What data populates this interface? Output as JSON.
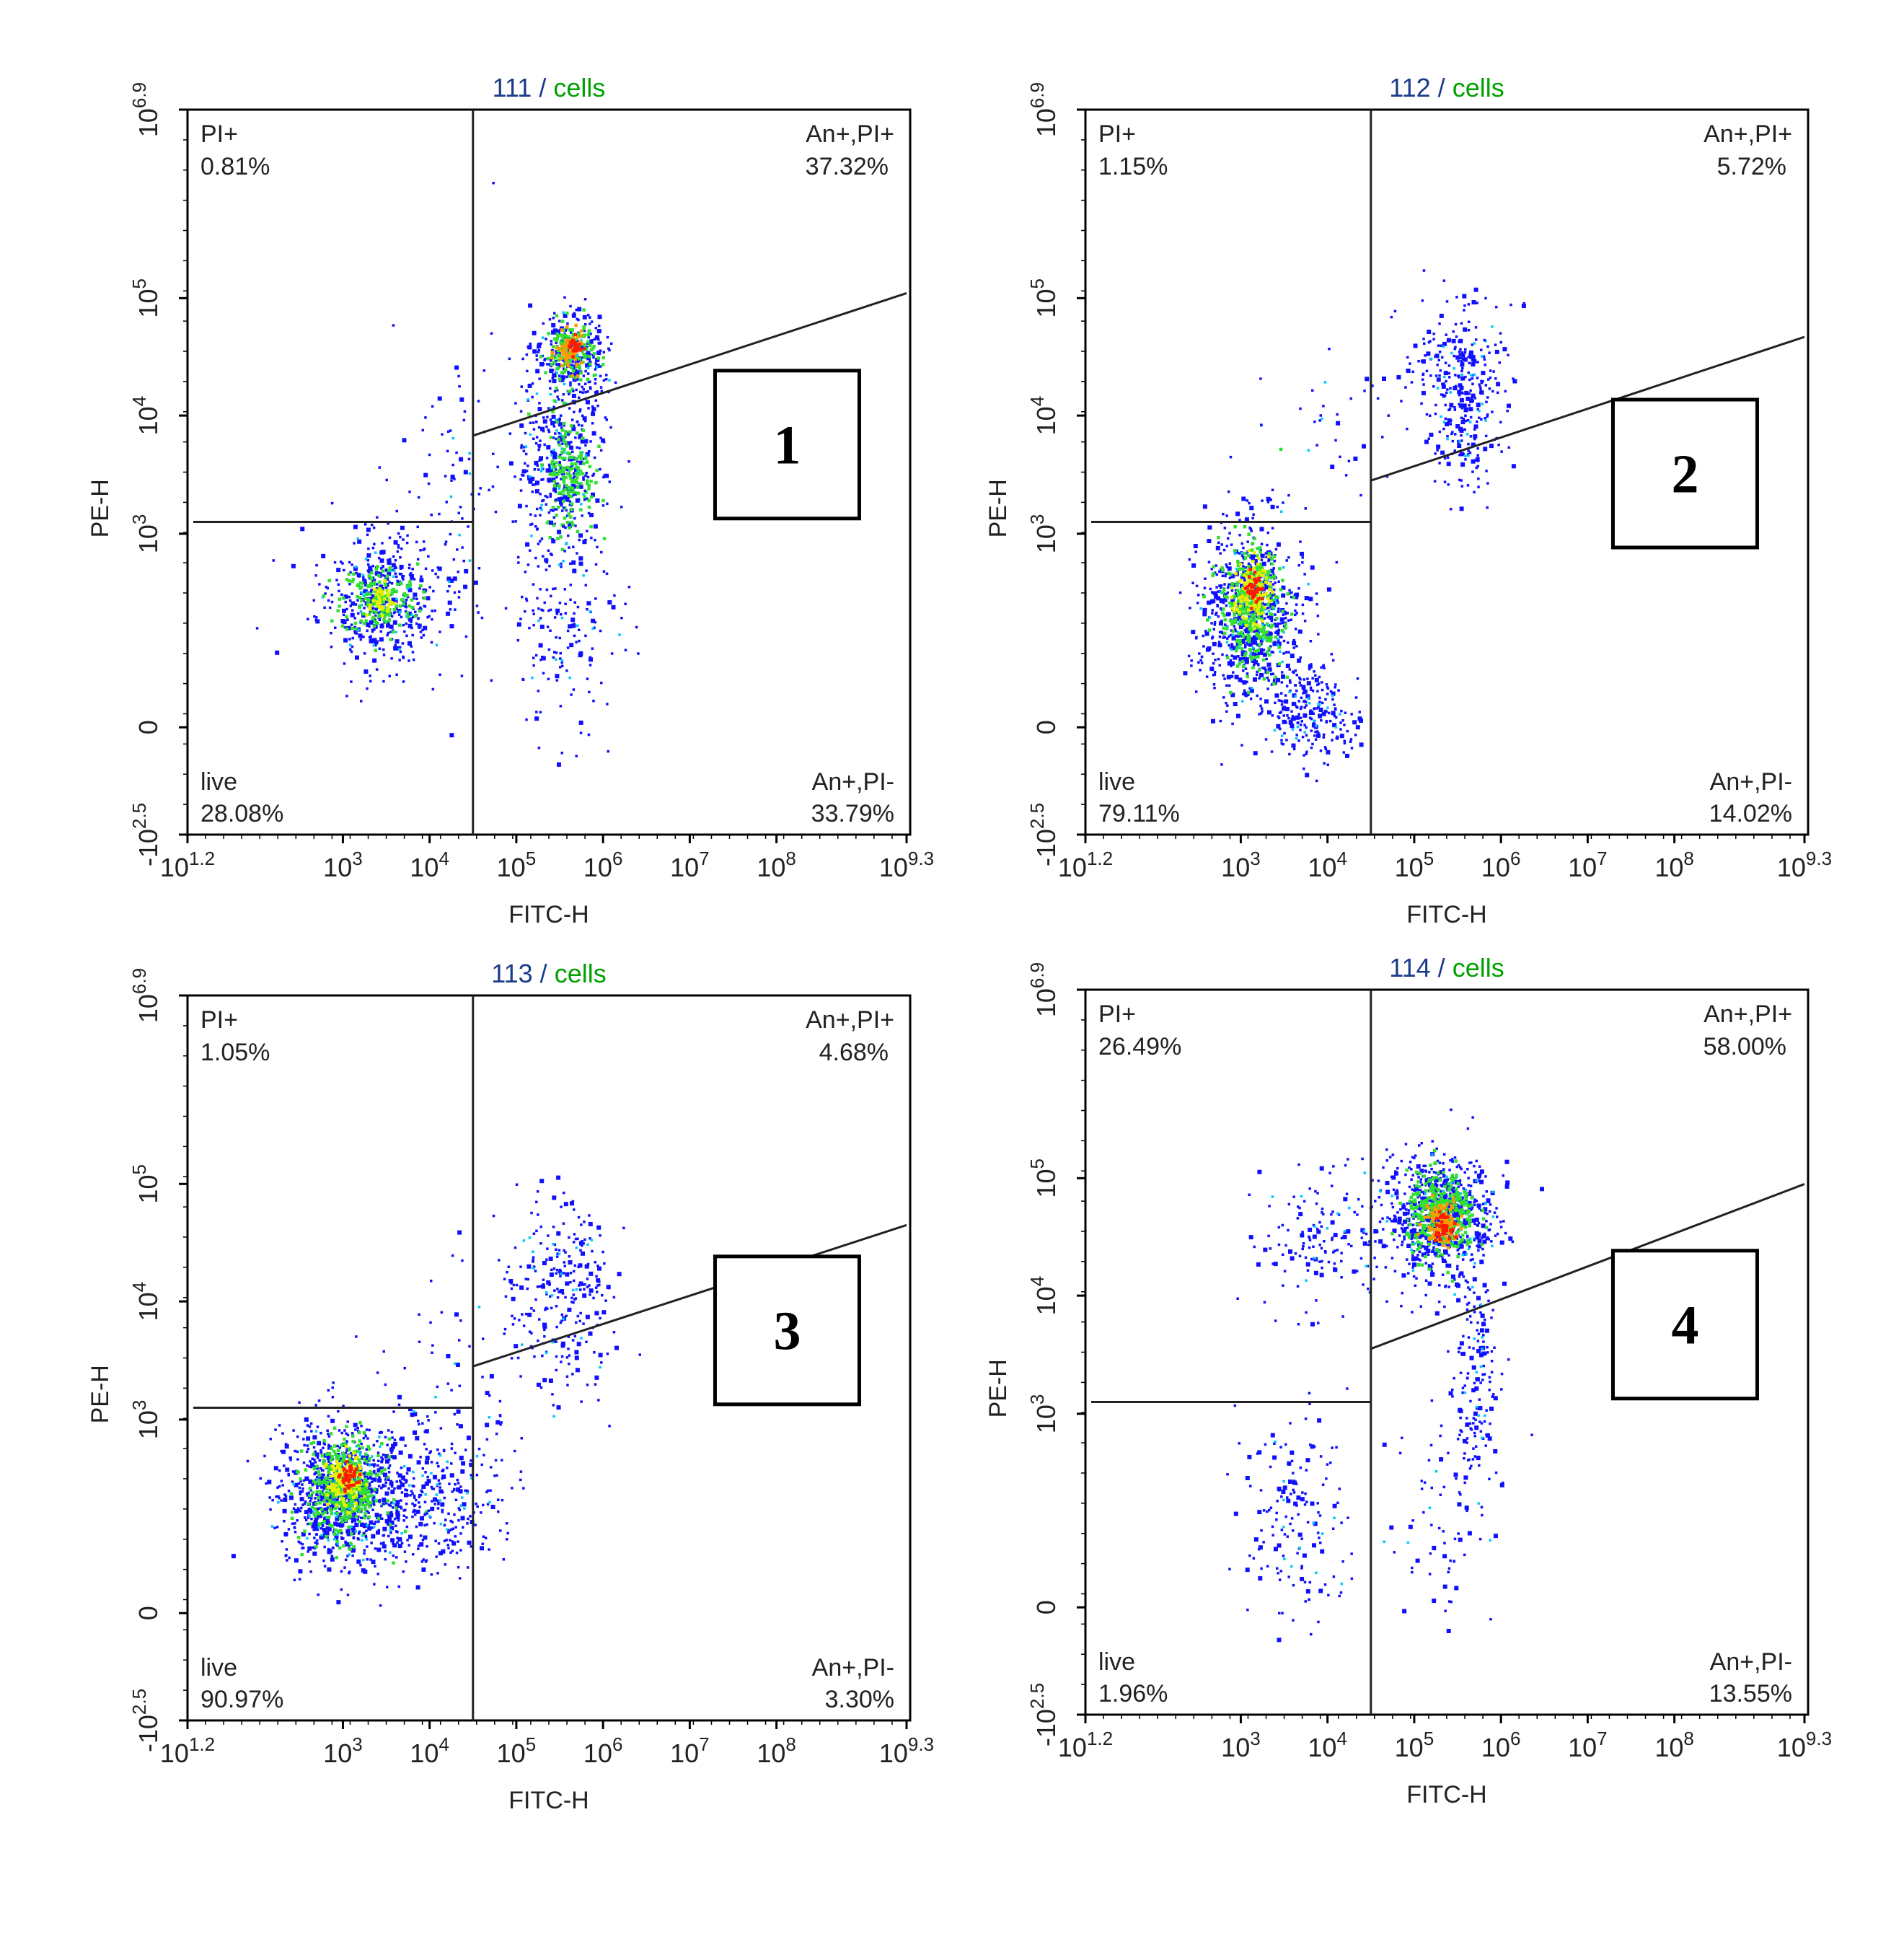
{
  "chart_data": [
    {
      "type": "scatter",
      "sample": "111",
      "gate": "cells",
      "xlabel": "FITC-H",
      "ylabel": "PE-H",
      "panel_number": "1",
      "x_ticks": [
        {
          "base": "10",
          "exp": "1.2"
        },
        {
          "base": "10",
          "exp": "3"
        },
        {
          "base": "10",
          "exp": "4"
        },
        {
          "base": "10",
          "exp": "5"
        },
        {
          "base": "10",
          "exp": "6"
        },
        {
          "base": "10",
          "exp": "7"
        },
        {
          "base": "10",
          "exp": "8"
        },
        {
          "base": "10",
          "exp": "9.3"
        }
      ],
      "y_ticks": [
        {
          "base": "-10",
          "exp": "2.5"
        },
        {
          "base": "0",
          "exp": ""
        },
        {
          "base": "10",
          "exp": "3"
        },
        {
          "base": "10",
          "exp": "4"
        },
        {
          "base": "10",
          "exp": "5"
        },
        {
          "base": "10",
          "exp": "6.9"
        }
      ],
      "quadrants": {
        "top_left": {
          "label": "PI+",
          "value": "0.81%"
        },
        "top_right": {
          "label": "An+,PI+",
          "value": "37.32%"
        },
        "bottom_left": {
          "label": "live",
          "value": "28.08%"
        },
        "bottom_right": {
          "label": "An+,PI-",
          "value": "33.79%"
        }
      },
      "gate_x_log": 4.5,
      "gate_y_left_log": 3.1,
      "diag_line": {
        "x_log": [
          4.5,
          9.3
        ],
        "y_log": [
          3.83,
          5.05
        ]
      },
      "clusters": [
        {
          "cx": 3.4,
          "cy": 2.2,
          "sx": 0.35,
          "sy": 0.42,
          "n": 420,
          "color": "blue"
        },
        {
          "cx": 3.4,
          "cy": 2.2,
          "sx": 0.22,
          "sy": 0.22,
          "n": 160,
          "color": "green"
        },
        {
          "cx": 3.4,
          "cy": 2.2,
          "sx": 0.1,
          "sy": 0.1,
          "n": 40,
          "color": "yellow"
        },
        {
          "cx": 5.6,
          "cy": 4.5,
          "sx": 0.22,
          "sy": 0.22,
          "n": 260,
          "color": "blue"
        },
        {
          "cx": 5.6,
          "cy": 4.55,
          "sx": 0.14,
          "sy": 0.14,
          "n": 140,
          "color": "green"
        },
        {
          "cx": 5.6,
          "cy": 4.55,
          "sx": 0.08,
          "sy": 0.08,
          "n": 70,
          "color": "orange"
        },
        {
          "cx": 5.65,
          "cy": 4.6,
          "sx": 0.04,
          "sy": 0.04,
          "n": 25,
          "color": "red"
        },
        {
          "cx": 5.5,
          "cy": 3.6,
          "sx": 0.25,
          "sy": 0.35,
          "n": 320,
          "color": "blue"
        },
        {
          "cx": 5.6,
          "cy": 3.5,
          "sx": 0.14,
          "sy": 0.25,
          "n": 150,
          "color": "green"
        },
        {
          "cx": 5.5,
          "cy": 2.0,
          "sx": 0.3,
          "sy": 0.7,
          "n": 180,
          "color": "blue"
        },
        {
          "cx": 4.3,
          "cy": 3.2,
          "sx": 0.35,
          "sy": 0.9,
          "n": 90,
          "color": "blue"
        }
      ]
    },
    {
      "type": "scatter",
      "sample": "112",
      "gate": "cells",
      "xlabel": "FITC-H",
      "ylabel": "PE-H",
      "panel_number": "2",
      "x_ticks": [
        {
          "base": "10",
          "exp": "1.2"
        },
        {
          "base": "10",
          "exp": "3"
        },
        {
          "base": "10",
          "exp": "4"
        },
        {
          "base": "10",
          "exp": "5"
        },
        {
          "base": "10",
          "exp": "6"
        },
        {
          "base": "10",
          "exp": "7"
        },
        {
          "base": "10",
          "exp": "8"
        },
        {
          "base": "10",
          "exp": "9.3"
        }
      ],
      "y_ticks": [
        {
          "base": "-10",
          "exp": "2.5"
        },
        {
          "base": "0",
          "exp": ""
        },
        {
          "base": "10",
          "exp": "3"
        },
        {
          "base": "10",
          "exp": "4"
        },
        {
          "base": "10",
          "exp": "5"
        },
        {
          "base": "10",
          "exp": "6.9"
        }
      ],
      "quadrants": {
        "top_left": {
          "label": "PI+",
          "value": "1.15%"
        },
        "top_right": {
          "label": "An+,PI+",
          "value": "5.72%"
        },
        "bottom_left": {
          "label": "live",
          "value": "79.11%"
        },
        "bottom_right": {
          "label": "An+,PI-",
          "value": "14.02%"
        }
      },
      "gate_x_log": 4.5,
      "gate_y_left_log": 3.1,
      "diag_line": {
        "x_log": [
          4.5,
          9.3
        ],
        "y_log": [
          3.45,
          4.67
        ]
      },
      "clusters": [
        {
          "cx": 3.1,
          "cy": 2.0,
          "sx": 0.3,
          "sy": 0.55,
          "n": 700,
          "color": "blue"
        },
        {
          "cx": 3.1,
          "cy": 2.1,
          "sx": 0.18,
          "sy": 0.38,
          "n": 320,
          "color": "green"
        },
        {
          "cx": 3.1,
          "cy": 2.3,
          "sx": 0.1,
          "sy": 0.2,
          "n": 110,
          "color": "yellow"
        },
        {
          "cx": 3.15,
          "cy": 2.35,
          "sx": 0.05,
          "sy": 0.1,
          "n": 40,
          "color": "red"
        },
        {
          "cx": 3.8,
          "cy": 0.8,
          "sx": 0.3,
          "sy": 0.3,
          "n": 220,
          "color": "blue"
        },
        {
          "cx": 5.5,
          "cy": 4.35,
          "sx": 0.3,
          "sy": 0.3,
          "n": 230,
          "color": "blue"
        },
        {
          "cx": 5.6,
          "cy": 3.8,
          "sx": 0.2,
          "sy": 0.3,
          "n": 90,
          "color": "blue"
        },
        {
          "cx": 4.2,
          "cy": 3.9,
          "sx": 0.6,
          "sy": 0.4,
          "n": 40,
          "color": "blue"
        }
      ]
    },
    {
      "type": "scatter",
      "sample": "113",
      "gate": "cells",
      "xlabel": "FITC-H",
      "ylabel": "PE-H",
      "panel_number": "3",
      "x_ticks": [
        {
          "base": "10",
          "exp": "1.2"
        },
        {
          "base": "10",
          "exp": "3"
        },
        {
          "base": "10",
          "exp": "4"
        },
        {
          "base": "10",
          "exp": "5"
        },
        {
          "base": "10",
          "exp": "6"
        },
        {
          "base": "10",
          "exp": "7"
        },
        {
          "base": "10",
          "exp": "8"
        },
        {
          "base": "10",
          "exp": "9.3"
        }
      ],
      "y_ticks": [
        {
          "base": "-10",
          "exp": "2.5"
        },
        {
          "base": "0",
          "exp": ""
        },
        {
          "base": "10",
          "exp": "3"
        },
        {
          "base": "10",
          "exp": "4"
        },
        {
          "base": "10",
          "exp": "5"
        },
        {
          "base": "10",
          "exp": "6.9"
        }
      ],
      "quadrants": {
        "top_left": {
          "label": "PI+",
          "value": "1.05%"
        },
        "top_right": {
          "label": "An+,PI+",
          "value": "4.68%"
        },
        "bottom_left": {
          "label": "live",
          "value": "90.97%"
        },
        "bottom_right": {
          "label": "An+,PI-",
          "value": "3.30%"
        }
      },
      "gate_x_log": 4.5,
      "gate_y_left_log": 3.1,
      "diag_line": {
        "x_log": [
          4.5,
          9.3
        ],
        "y_log": [
          3.45,
          4.65
        ]
      },
      "clusters": [
        {
          "cx": 3.0,
          "cy": 2.1,
          "sx": 0.38,
          "sy": 0.45,
          "n": 900,
          "color": "blue"
        },
        {
          "cx": 3.0,
          "cy": 2.15,
          "sx": 0.22,
          "sy": 0.3,
          "n": 380,
          "color": "green"
        },
        {
          "cx": 3.0,
          "cy": 2.25,
          "sx": 0.1,
          "sy": 0.16,
          "n": 120,
          "color": "yellow"
        },
        {
          "cx": 3.05,
          "cy": 2.3,
          "sx": 0.05,
          "sy": 0.08,
          "n": 45,
          "color": "red"
        },
        {
          "cx": 4.1,
          "cy": 2.0,
          "sx": 0.35,
          "sy": 0.45,
          "n": 260,
          "color": "blue"
        },
        {
          "cx": 5.5,
          "cy": 4.1,
          "sx": 0.3,
          "sy": 0.4,
          "n": 260,
          "color": "blue"
        },
        {
          "cx": 4.5,
          "cy": 3.3,
          "sx": 0.5,
          "sy": 0.6,
          "n": 60,
          "color": "blue"
        }
      ]
    },
    {
      "type": "scatter",
      "sample": "114",
      "gate": "cells",
      "xlabel": "FITC-H",
      "ylabel": "PE-H",
      "panel_number": "4",
      "x_ticks": [
        {
          "base": "10",
          "exp": "1.2"
        },
        {
          "base": "10",
          "exp": "3"
        },
        {
          "base": "10",
          "exp": "4"
        },
        {
          "base": "10",
          "exp": "5"
        },
        {
          "base": "10",
          "exp": "6"
        },
        {
          "base": "10",
          "exp": "7"
        },
        {
          "base": "10",
          "exp": "8"
        },
        {
          "base": "10",
          "exp": "9.3"
        }
      ],
      "y_ticks": [
        {
          "base": "-10",
          "exp": "2.5"
        },
        {
          "base": "0",
          "exp": ""
        },
        {
          "base": "10",
          "exp": "3"
        },
        {
          "base": "10",
          "exp": "4"
        },
        {
          "base": "10",
          "exp": "5"
        },
        {
          "base": "10",
          "exp": "6.9"
        }
      ],
      "quadrants": {
        "top_left": {
          "label": "PI+",
          "value": "26.49%"
        },
        "top_right": {
          "label": "An+,PI+",
          "value": "58.00%"
        },
        "bottom_left": {
          "label": "live",
          "value": "1.96%"
        },
        "bottom_right": {
          "label": "An+,PI-",
          "value": "13.55%"
        }
      },
      "gate_x_log": 4.5,
      "gate_y_left_log": 3.1,
      "diag_line": {
        "x_log": [
          4.5,
          9.3
        ],
        "y_log": [
          3.55,
          4.95
        ]
      },
      "clusters": [
        {
          "cx": 5.3,
          "cy": 4.7,
          "sx": 0.3,
          "sy": 0.28,
          "n": 650,
          "color": "blue"
        },
        {
          "cx": 5.3,
          "cy": 4.7,
          "sx": 0.2,
          "sy": 0.18,
          "n": 320,
          "color": "green"
        },
        {
          "cx": 5.3,
          "cy": 4.65,
          "sx": 0.1,
          "sy": 0.1,
          "n": 110,
          "color": "orange"
        },
        {
          "cx": 5.3,
          "cy": 4.6,
          "sx": 0.05,
          "sy": 0.05,
          "n": 35,
          "color": "red"
        },
        {
          "cx": 4.0,
          "cy": 4.5,
          "sx": 0.5,
          "sy": 0.3,
          "n": 160,
          "color": "blue"
        },
        {
          "cx": 5.7,
          "cy": 3.3,
          "sx": 0.15,
          "sy": 0.6,
          "n": 150,
          "color": "blue"
        },
        {
          "cx": 3.6,
          "cy": 1.7,
          "sx": 0.3,
          "sy": 0.7,
          "n": 150,
          "color": "blue"
        },
        {
          "cx": 5.4,
          "cy": 1.8,
          "sx": 0.35,
          "sy": 0.7,
          "n": 70,
          "color": "blue"
        }
      ]
    }
  ],
  "colors": {
    "axis": "#000000",
    "gate_name": "#00a000",
    "sample_name": "#1a3a8a",
    "density": {
      "blue": "#1010ff",
      "cyan": "#00c8ff",
      "green": "#30e030",
      "yellow": "#e8f000",
      "orange": "#ff9a00",
      "red": "#ff1a00"
    }
  }
}
